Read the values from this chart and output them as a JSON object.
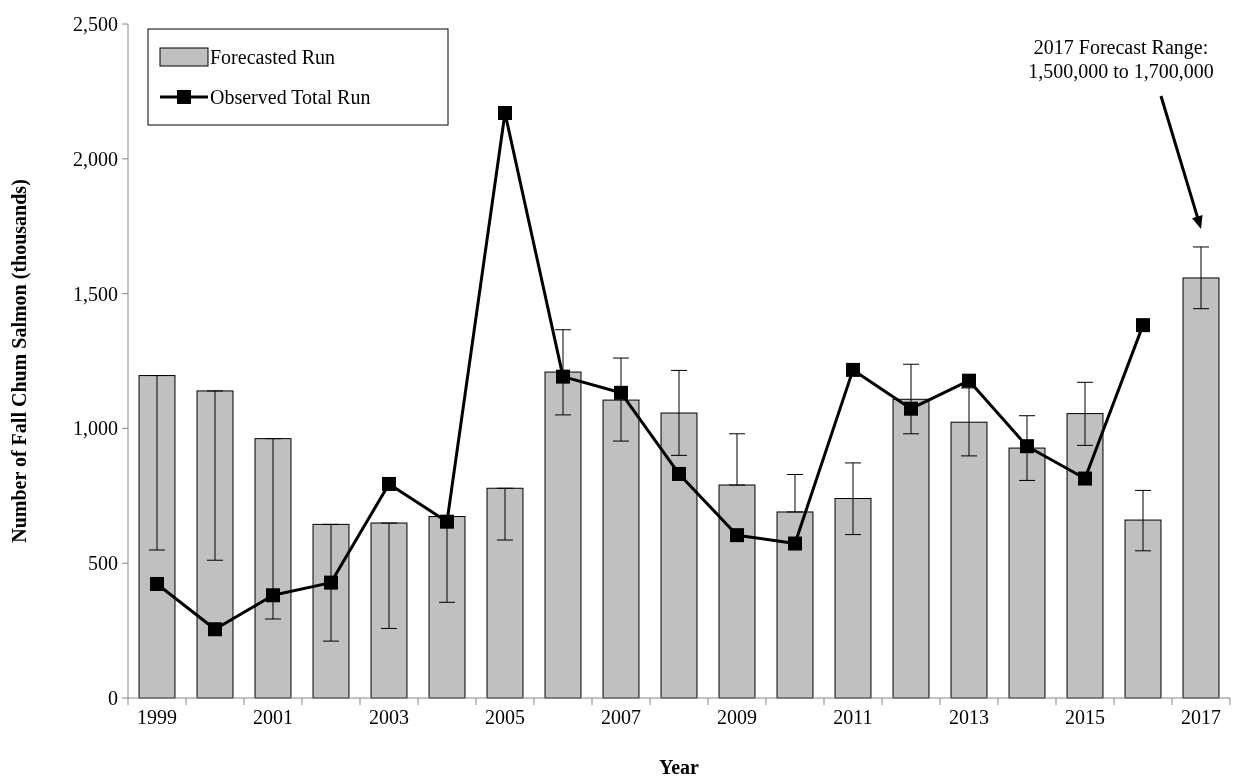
{
  "chart_data": {
    "type": "bar",
    "xlabel": "Year",
    "ylabel": "Number of Fall Chum Salmon (thousands)",
    "categories": [
      "1999",
      null,
      "2001",
      null,
      "2003",
      null,
      "2005",
      null,
      "2007",
      null,
      "2009",
      null,
      "2011",
      null,
      "2013",
      null,
      "2015",
      null,
      "2017"
    ],
    "series": [
      {
        "name": "Forecasted Run",
        "color": "#c0c0c0",
        "values": [
          1196,
          1139,
          962,
          644,
          649,
          673,
          778,
          1209,
          1105,
          1057,
          790,
          690,
          740,
          1108,
          1023,
          927,
          1055,
          660,
          1558
        ],
        "errors": [
          [
            549,
            1196
          ],
          [
            511,
            1139
          ],
          [
            293,
            962
          ],
          [
            211,
            644
          ],
          [
            258,
            649
          ],
          [
            355,
            673
          ],
          [
            586,
            778
          ],
          [
            1050,
            1366
          ],
          [
            953,
            1261
          ],
          [
            900,
            1215
          ],
          [
            790,
            980
          ],
          [
            690,
            829
          ],
          [
            606,
            872
          ],
          [
            980,
            1238
          ],
          [
            898,
            1150
          ],
          [
            807,
            1047
          ],
          [
            937,
            1171
          ],
          [
            546,
            770
          ],
          [
            1444,
            1673
          ]
        ]
      },
      {
        "name": "Observed Total Run",
        "type": "line",
        "color": "#000000",
        "marker": "square",
        "values": [
          423,
          255,
          381,
          428,
          794,
          654,
          2170,
          1192,
          1132,
          831,
          604,
          573,
          1217,
          1073,
          1177,
          934,
          814,
          1383,
          null
        ]
      }
    ],
    "ylim": [
      0,
      2500
    ],
    "yticks": [
      0,
      500,
      {
        "value": 1000,
        "label": "1,000"
      },
      {
        "value": 1500,
        "label": "1,500"
      },
      {
        "value": 2000,
        "label": "2,000"
      },
      {
        "value": 2500,
        "label": "2,500"
      }
    ],
    "grid": false,
    "legend": "top left",
    "annotations": [
      "2017 Forecast Range:\n1,500,000 to 1,700,000"
    ]
  }
}
